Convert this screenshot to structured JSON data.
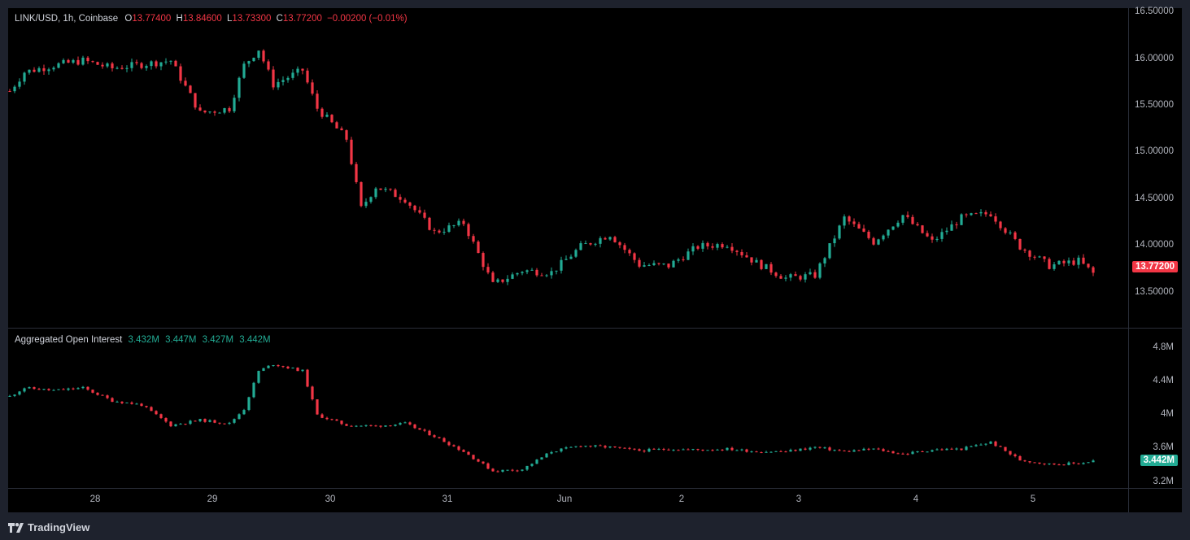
{
  "price_legend": {
    "symbol": "LINK/USD, 1h, Coinbase",
    "o_label": "O",
    "o": "13.77400",
    "h_label": "H",
    "h": "13.84600",
    "l_label": "L",
    "l": "13.73300",
    "c_label": "C",
    "c": "13.77200",
    "change": "−0.00200 (−0.01%)"
  },
  "oi_legend": {
    "name": "Aggregated Open Interest",
    "v1": "3.432M",
    "v2": "3.447M",
    "v3": "3.427M",
    "v4": "3.442M"
  },
  "price_axis": [
    "16.50000",
    "16.00000",
    "15.50000",
    "15.00000",
    "14.50000",
    "14.00000",
    "13.50000"
  ],
  "oi_axis": [
    "4.8M",
    "4.4M",
    "4M",
    "3.6M",
    "3.2M"
  ],
  "time_axis": [
    "28",
    "29",
    "30",
    "31",
    "Jun",
    "2",
    "3",
    "4",
    "5"
  ],
  "price_badge": "13.77200",
  "oi_badge": "3.442M",
  "logo_text": "TradingView",
  "colors": {
    "up": "#22ab94",
    "down": "#f23645",
    "background": "#000000",
    "frame": "#1e222d"
  },
  "chart_data": [
    {
      "type": "candlestick",
      "title": "LINK/USD, 1h, Coinbase",
      "ylim": [
        13.2,
        16.55
      ],
      "anchors": [
        [
          "May 27 09:00",
          15.68
        ],
        [
          "May 27 12:00",
          15.88
        ],
        [
          "May 27 18:00",
          15.95
        ],
        [
          "May 28 00:00",
          16.0
        ],
        [
          "May 28 06:00",
          15.92
        ],
        [
          "May 28 12:00",
          15.96
        ],
        [
          "May 28 18:00",
          16.0
        ],
        [
          "May 29 00:00",
          15.45
        ],
        [
          "May 29 06:00",
          15.5
        ],
        [
          "May 29 09:00",
          15.95
        ],
        [
          "May 29 12:00",
          16.12
        ],
        [
          "May 29 15:00",
          15.75
        ],
        [
          "May 29 21:00",
          15.9
        ],
        [
          "May 30 00:00",
          15.5
        ],
        [
          "May 30 06:00",
          15.18
        ],
        [
          "May 30 09:00",
          14.45
        ],
        [
          "May 30 12:00",
          14.68
        ],
        [
          "May 30 18:00",
          14.55
        ],
        [
          "May 31 00:00",
          14.2
        ],
        [
          "May 31 06:00",
          14.3
        ],
        [
          "May 31 12:00",
          13.65
        ],
        [
          "May 31 18:00",
          13.8
        ],
        [
          "Jun 01 00:00",
          13.78
        ],
        [
          "Jun 01 06:00",
          14.05
        ],
        [
          "Jun 01 12:00",
          14.18
        ],
        [
          "Jun 01 18:00",
          13.86
        ],
        [
          "Jun 02 00:00",
          13.85
        ],
        [
          "Jun 02 06:00",
          14.05
        ],
        [
          "Jun 02 12:00",
          14.08
        ],
        [
          "Jun 02 18:00",
          13.88
        ],
        [
          "Jun 03 00:00",
          13.72
        ],
        [
          "Jun 03 06:00",
          13.75
        ],
        [
          "Jun 03 09:00",
          14.05
        ],
        [
          "Jun 03 12:00",
          14.35
        ],
        [
          "Jun 03 18:00",
          14.1
        ],
        [
          "Jun 04 00:00",
          14.38
        ],
        [
          "Jun 04 06:00",
          14.1
        ],
        [
          "Jun 04 12:00",
          14.35
        ],
        [
          "Jun 04 18:00",
          14.4
        ],
        [
          "Jun 05 00:00",
          14.05
        ],
        [
          "Jun 05 06:00",
          13.85
        ],
        [
          "Jun 05 12:00",
          13.9
        ],
        [
          "Jun 05 15:00",
          13.77
        ]
      ]
    },
    {
      "type": "candlestick",
      "title": "Aggregated Open Interest",
      "ylim": [
        3.12,
        5.0
      ],
      "anchors": [
        [
          "May 27 09:00",
          4.2
        ],
        [
          "May 27 12:00",
          4.3
        ],
        [
          "May 27 18:00",
          4.27
        ],
        [
          "May 28 00:00",
          4.3
        ],
        [
          "May 28 06:00",
          4.15
        ],
        [
          "May 28 12:00",
          4.1
        ],
        [
          "May 28 18:00",
          3.86
        ],
        [
          "May 29 00:00",
          3.92
        ],
        [
          "May 29 06:00",
          3.88
        ],
        [
          "May 29 09:00",
          4.05
        ],
        [
          "May 29 12:00",
          4.5
        ],
        [
          "May 29 15:00",
          4.58
        ],
        [
          "May 29 21:00",
          4.5
        ],
        [
          "May 30 00:00",
          3.98
        ],
        [
          "May 30 06:00",
          3.86
        ],
        [
          "May 30 12:00",
          3.85
        ],
        [
          "May 30 18:00",
          3.88
        ],
        [
          "May 31 00:00",
          3.73
        ],
        [
          "May 31 06:00",
          3.55
        ],
        [
          "May 31 12:00",
          3.32
        ],
        [
          "May 31 18:00",
          3.34
        ],
        [
          "Jun 01 00:00",
          3.55
        ],
        [
          "Jun 01 06:00",
          3.62
        ],
        [
          "Jun 01 12:00",
          3.6
        ],
        [
          "Jun 01 18:00",
          3.56
        ],
        [
          "Jun 02 00:00",
          3.58
        ],
        [
          "Jun 02 06:00",
          3.57
        ],
        [
          "Jun 02 12:00",
          3.58
        ],
        [
          "Jun 02 18:00",
          3.55
        ],
        [
          "Jun 03 00:00",
          3.55
        ],
        [
          "Jun 03 06:00",
          3.6
        ],
        [
          "Jun 03 12:00",
          3.55
        ],
        [
          "Jun 03 18:00",
          3.58
        ],
        [
          "Jun 04 00:00",
          3.52
        ],
        [
          "Jun 04 06:00",
          3.57
        ],
        [
          "Jun 04 12:00",
          3.58
        ],
        [
          "Jun 04 18:00",
          3.66
        ],
        [
          "Jun 05 00:00",
          3.45
        ],
        [
          "Jun 05 06:00",
          3.4
        ],
        [
          "Jun 05 12:00",
          3.41
        ],
        [
          "Jun 05 15:00",
          3.44
        ]
      ]
    }
  ]
}
